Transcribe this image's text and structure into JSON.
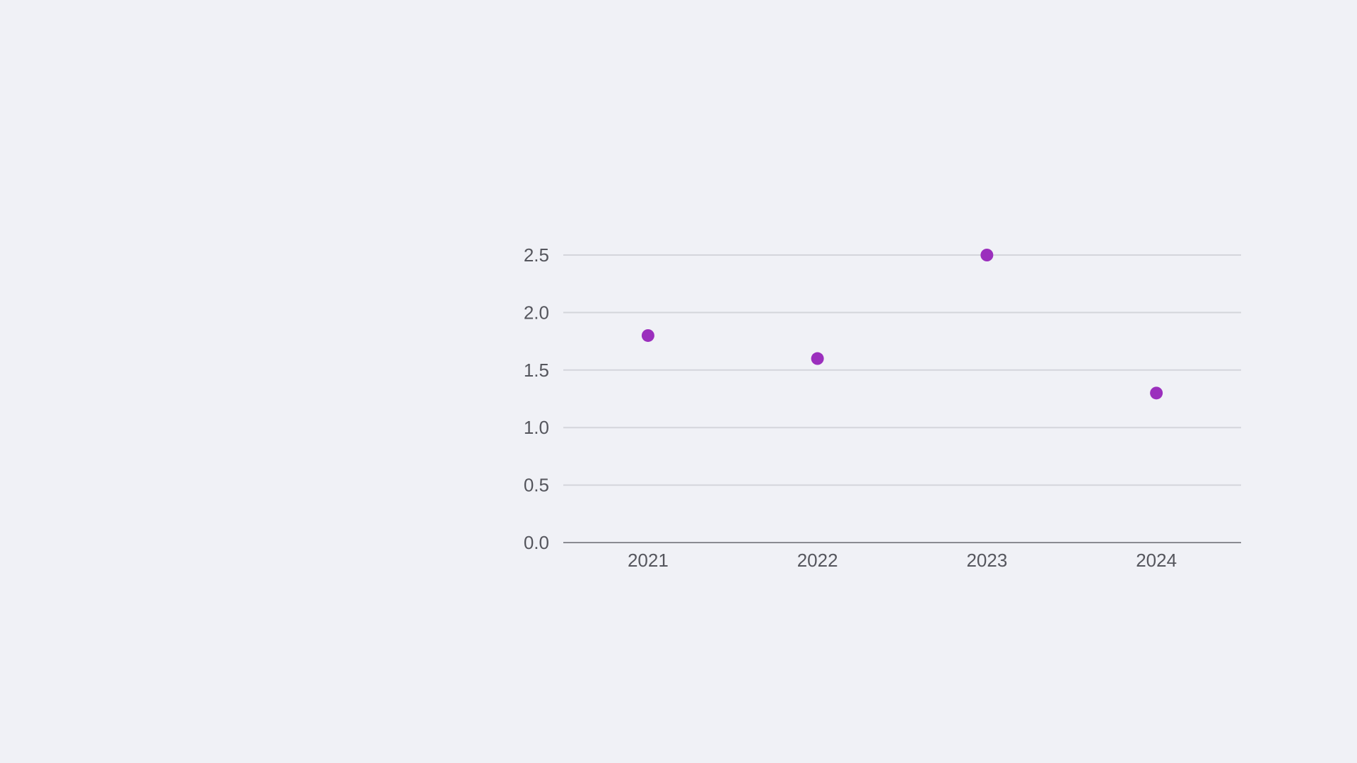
{
  "chart_data": {
    "type": "scatter",
    "categories": [
      "2021",
      "2022",
      "2023",
      "2024"
    ],
    "series": [
      {
        "values": [
          1.8,
          1.6,
          2.5,
          1.3
        ]
      }
    ],
    "title": "",
    "xlabel": "",
    "ylabel": "",
    "ylim": [
      0,
      2.5
    ],
    "yticks": [
      "0.0",
      "0.5",
      "1.0",
      "1.5",
      "2.0",
      "2.5"
    ],
    "grid": true,
    "legend": "none",
    "colors": {
      "point": "#9b2fbd",
      "gridline": "#d4d5db",
      "axis": "#8a8b92",
      "text": "#55565d",
      "background": "#f0f1f6"
    }
  }
}
